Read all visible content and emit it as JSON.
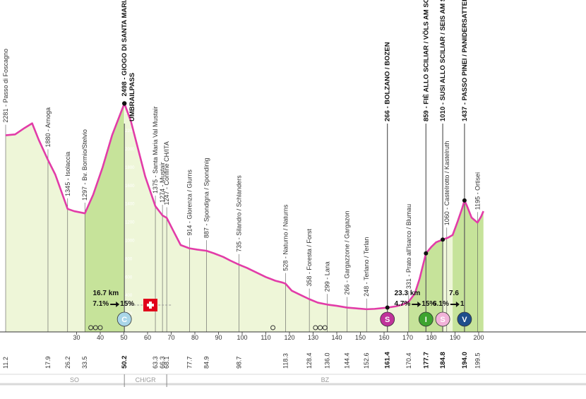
{
  "colors": {
    "profile_line": "#e23ca8",
    "fill_light": "#eef6d8",
    "fill_climb": "#c6e39a",
    "climb_c_badge": "#a9d6e8",
    "climb_i_badge": "#3da42f",
    "climb_s_badge": "#c0339b",
    "climb_v_badge": "#1f4e8c",
    "region_bar": "#d9d9d9"
  },
  "chart_data": {
    "type": "area",
    "xlabel": "",
    "ylabel": "",
    "xlim": [
      0,
      202
    ],
    "ylim": [
      0,
      2600
    ],
    "y_ticks": [
      200,
      400,
      600,
      800,
      1000,
      1200,
      1400,
      1600,
      1800,
      2000,
      2200,
      2400
    ],
    "x_ticks": [
      30,
      40,
      50,
      60,
      70,
      80,
      90,
      100,
      110,
      120,
      130,
      140,
      150,
      160,
      170,
      180,
      190,
      200
    ],
    "x_tick_labels": [
      "30",
      "40",
      "50",
      "60",
      "70",
      "80",
      "90",
      "100",
      "110",
      "120",
      "130",
      "140",
      "150",
      "160",
      "170",
      "180",
      "190",
      "200"
    ],
    "profile": {
      "x": [
        0,
        4,
        8,
        11.2,
        14,
        17.9,
        21,
        26.2,
        29,
        33.5,
        37,
        41,
        45,
        50.2,
        53,
        56,
        59,
        63.3,
        66.3,
        68.1,
        71,
        74,
        77.7,
        81,
        84.9,
        88,
        92,
        95,
        98.7,
        102,
        106,
        110,
        114,
        117,
        118.3,
        121,
        125,
        128.4,
        132,
        136.0,
        140,
        144.4,
        148,
        152.6,
        156,
        161.4,
        165,
        168,
        170.4,
        173,
        175,
        177.7,
        180,
        182,
        184.8,
        187,
        189,
        191,
        193,
        194.0,
        195,
        197,
        199.5,
        201,
        202
      ],
      "y": [
        2150,
        2160,
        2230,
        2281,
        2100,
        1880,
        1720,
        1345,
        1320,
        1297,
        1500,
        1800,
        2150,
        2498,
        2300,
        2000,
        1700,
        1375,
        1274,
        1247,
        1100,
        950,
        914,
        900,
        887,
        860,
        820,
        780,
        735,
        700,
        650,
        600,
        560,
        540,
        528,
        450,
        400,
        358,
        320,
        299,
        285,
        266,
        258,
        248,
        252,
        266,
        280,
        300,
        331,
        420,
        580,
        859,
        930,
        980,
        1010,
        1030,
        1060,
        1200,
        1350,
        1437,
        1380,
        1250,
        1195,
        1260,
        1320
      ]
    },
    "points": [
      {
        "x": 0,
        "elev": "2281",
        "name": "Passo di Foscagno",
        "bold": false,
        "km": "11.2",
        "km_bold": false
      },
      {
        "x": 17.9,
        "elev": "1880",
        "name": "Arnoga",
        "bold": false,
        "km": "17.9",
        "km_bold": false
      },
      {
        "x": 26.2,
        "elev": "1345",
        "name": "Isolaccia",
        "bold": false,
        "km": "26.2",
        "km_bold": false
      },
      {
        "x": 33.5,
        "elev": "1297",
        "name": "Bv. Bormio/Stelvio",
        "bold": false,
        "km": "33.5",
        "km_bold": false
      },
      {
        "x": 50.2,
        "elev": "2498",
        "name": "GIOGO DI SANTA MARIA",
        "bold": true,
        "km": "50.2",
        "km_bold": true
      },
      {
        "x": 63.3,
        "elev": "1375",
        "name": "Santa Maria Val Mustair",
        "bold": false,
        "km": "63.3",
        "km_bold": false
      },
      {
        "x": 66.3,
        "elev": "1274",
        "name": "Mustair",
        "bold": false,
        "km": "66.3",
        "km_bold": false
      },
      {
        "x": 68.1,
        "elev": "1247",
        "name": "Confine CH/ITA",
        "bold": false,
        "km": "68.1",
        "km_bold": false
      },
      {
        "x": 77.7,
        "elev": "914",
        "name": "Glorenza / Glurns",
        "bold": false,
        "km": "77.7",
        "km_bold": false
      },
      {
        "x": 84.9,
        "elev": "887",
        "name": "Spondigna / Spondinig",
        "bold": false,
        "km": "84.9",
        "km_bold": false
      },
      {
        "x": 98.7,
        "elev": "735",
        "name": "Silandro / Schlanders",
        "bold": false,
        "km": "98.7",
        "km_bold": false
      },
      {
        "x": 118.3,
        "elev": "528",
        "name": "Naturno / Naturns",
        "bold": false,
        "km": "118.3",
        "km_bold": false
      },
      {
        "x": 128.4,
        "elev": "358",
        "name": "Foresta / Forst",
        "bold": false,
        "km": "128.4",
        "km_bold": false
      },
      {
        "x": 136.0,
        "elev": "299",
        "name": "Lana",
        "bold": false,
        "km": "136.0",
        "km_bold": false
      },
      {
        "x": 144.4,
        "elev": "266",
        "name": "Gargazzone / Gargazon",
        "bold": false,
        "km": "144.4",
        "km_bold": false
      },
      {
        "x": 152.6,
        "elev": "248",
        "name": "Terlano / Terlan",
        "bold": false,
        "km": "152.6",
        "km_bold": false
      },
      {
        "x": 161.4,
        "elev": "266",
        "name": "BOLZANO / BOZEN",
        "bold": true,
        "km": "161.4",
        "km_bold": true
      },
      {
        "x": 170.4,
        "elev": "331",
        "name": "Prato all'Isarco / Blumau",
        "bold": false,
        "km": "170.4",
        "km_bold": false
      },
      {
        "x": 177.7,
        "elev": "859",
        "name": "FIÈ ALLO SCILIAR / VÖLS AM SCHLERN",
        "bold": true,
        "km": "177.7",
        "km_bold": true
      },
      {
        "x": 184.8,
        "elev": "1010",
        "name": "SUSI ALLO SCILIAR / SEIS AM SCHLERN",
        "bold": true,
        "km": "184.8",
        "km_bold": true
      },
      {
        "x": 186.5,
        "elev": "1060",
        "name": "Castelrotto / Kastelruth",
        "bold": false,
        "km": "",
        "km_bold": false
      },
      {
        "x": 194.0,
        "elev": "1437",
        "name": "PASSO PINEI / PANIDERSATTEL",
        "bold": true,
        "km": "194.0",
        "km_bold": true
      },
      {
        "x": 199.5,
        "elev": "1195",
        "name": "Ortisei",
        "bold": false,
        "km": "199.5",
        "km_bold": false
      }
    ],
    "extra_title_line": "UMBRAILPASS",
    "climbs": [
      {
        "x": 50.2,
        "dist": "16.7 km",
        "grade": "7.1%",
        "max": "15%",
        "badge": "C"
      },
      {
        "x": 177.7,
        "dist": "23.3 km",
        "grade": "4.7%",
        "max": "15%",
        "badge": "I"
      },
      {
        "x": 194.0,
        "dist": "7.6",
        "grade": "6.1%",
        "max": "1",
        "badge": "V"
      }
    ],
    "sprint_badges": [
      {
        "x": 161.4,
        "badge": "S"
      },
      {
        "x": 184.8,
        "badge": "S"
      }
    ],
    "regions": [
      {
        "label": "SO",
        "from": 8,
        "to": 50.2
      },
      {
        "label": "CH/GR",
        "from": 50.2,
        "to": 68.1
      },
      {
        "label": "BZ",
        "from": 68.1,
        "to": 202
      }
    ]
  }
}
